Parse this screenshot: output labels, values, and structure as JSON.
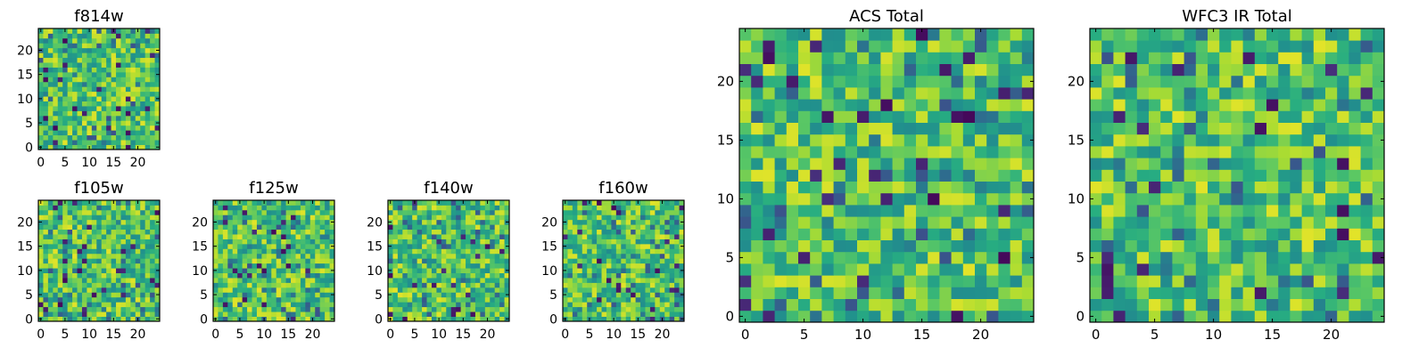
{
  "chart_data": [
    {
      "type": "heatmap",
      "title": "f814w",
      "grid_size": 25,
      "colormap": "viridis",
      "xticks": [
        0,
        5,
        10,
        15,
        20
      ],
      "yticks": [
        0,
        5,
        10,
        15,
        20
      ],
      "seed": 11
    },
    {
      "type": "heatmap",
      "title": "f105w",
      "grid_size": 25,
      "colormap": "viridis",
      "xticks": [
        0,
        5,
        10,
        15,
        20
      ],
      "yticks": [
        0,
        5,
        10,
        15,
        20
      ],
      "seed": 23
    },
    {
      "type": "heatmap",
      "title": "f125w",
      "grid_size": 25,
      "colormap": "viridis",
      "xticks": [
        0,
        5,
        10,
        15,
        20
      ],
      "yticks": [
        0,
        5,
        10,
        15,
        20
      ],
      "seed": 37
    },
    {
      "type": "heatmap",
      "title": "f140w",
      "grid_size": 25,
      "colormap": "viridis",
      "xticks": [
        0,
        5,
        10,
        15,
        20
      ],
      "yticks": [
        0,
        5,
        10,
        15,
        20
      ],
      "seed": 41
    },
    {
      "type": "heatmap",
      "title": "f160w",
      "grid_size": 25,
      "colormap": "viridis",
      "xticks": [
        0,
        5,
        10,
        15,
        20
      ],
      "yticks": [
        0,
        5,
        10,
        15,
        20
      ],
      "seed": 53
    },
    {
      "type": "heatmap",
      "title": "ACS Total",
      "grid_size": 25,
      "colormap": "viridis",
      "xticks": [
        0,
        5,
        10,
        15,
        20
      ],
      "yticks": [
        0,
        5,
        10,
        15,
        20
      ],
      "seed": 67
    },
    {
      "type": "heatmap",
      "title": "WFC3 IR Total",
      "grid_size": 25,
      "colormap": "viridis",
      "xticks": [
        0,
        5,
        10,
        15,
        20
      ],
      "yticks": [
        0,
        5,
        10,
        15,
        20
      ],
      "seed": 79
    }
  ]
}
